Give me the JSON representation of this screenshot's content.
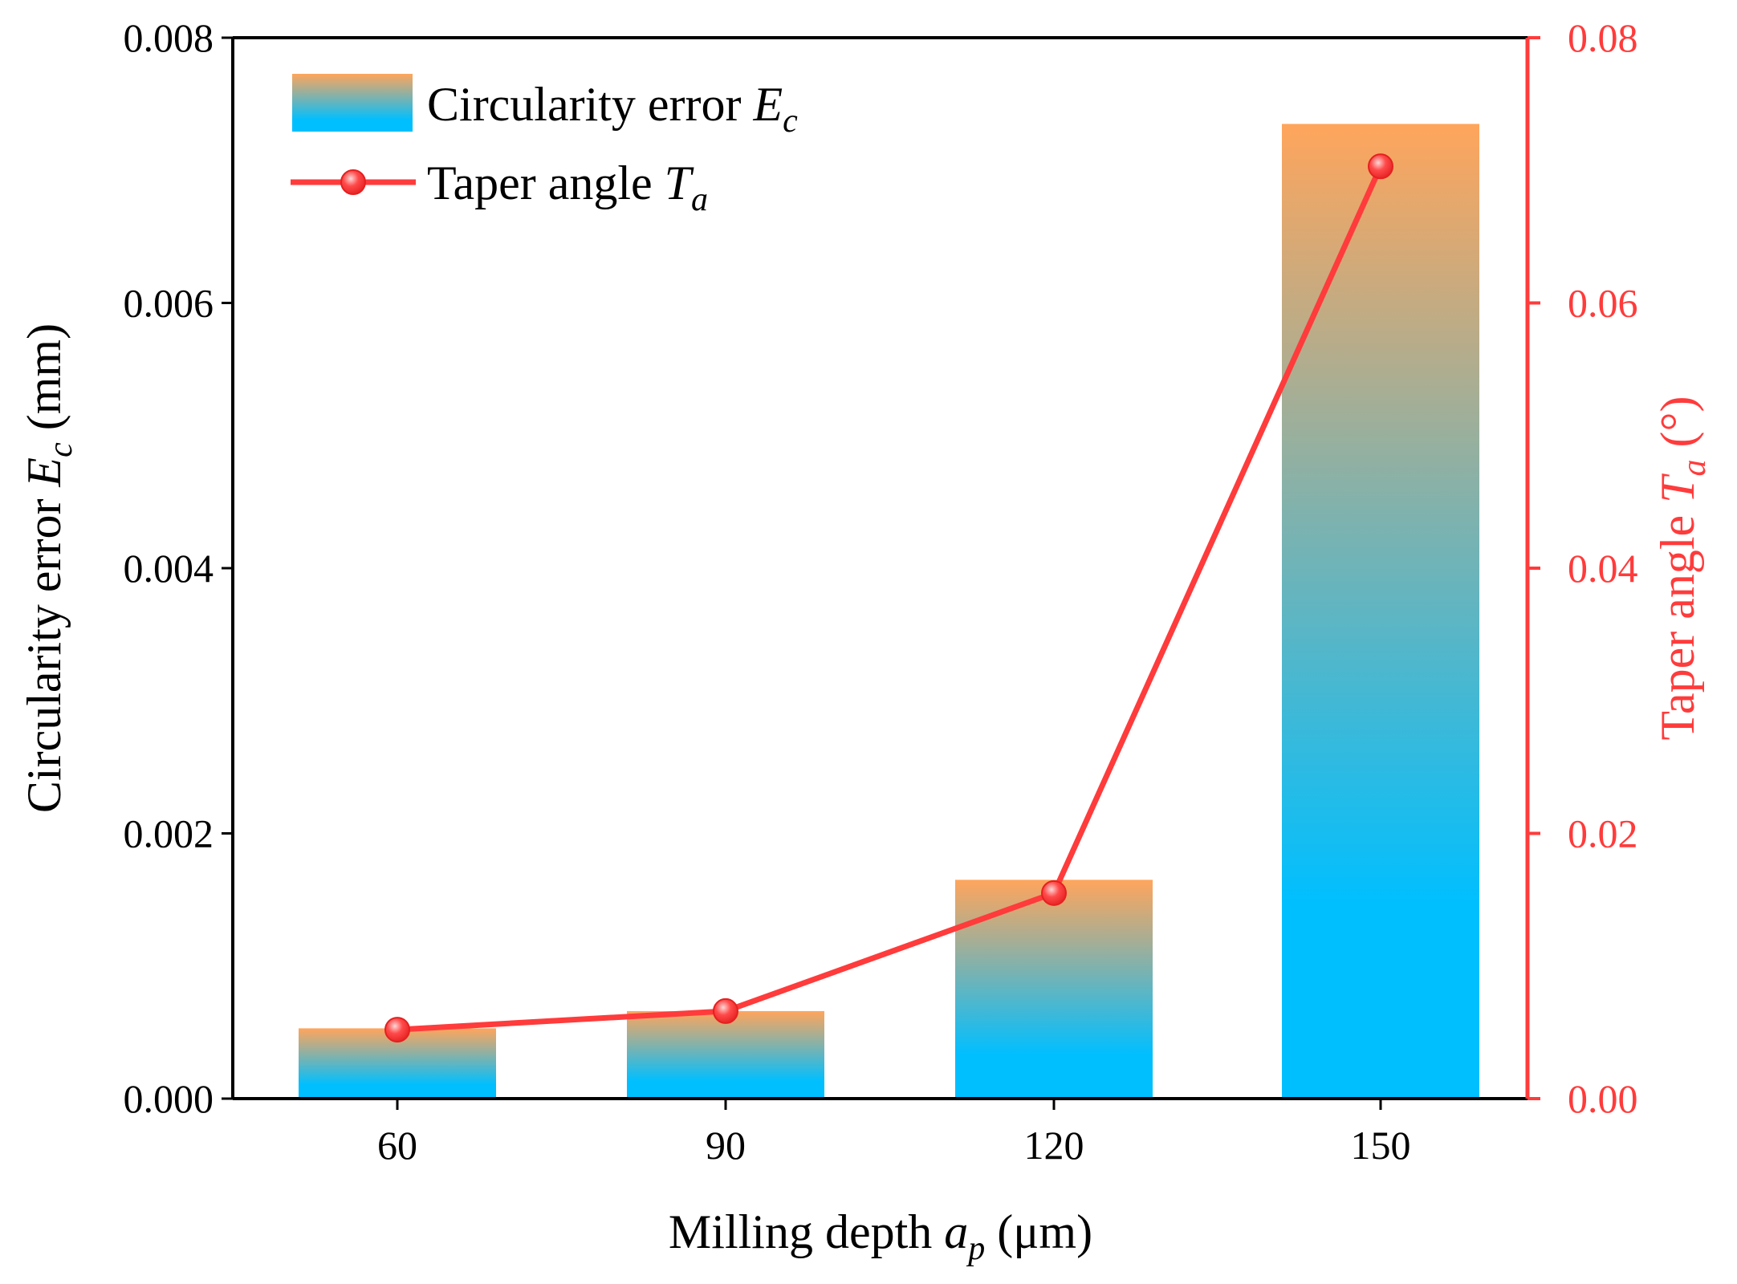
{
  "colors": {
    "bar_top": "#ffa55c",
    "bar_bottom": "#00bfff",
    "line": "#ff3b3b",
    "axis": "#000000",
    "right_axis": "#ff3b3b"
  },
  "chart_data": {
    "type": "bar",
    "categories": [
      "60",
      "90",
      "120",
      "150"
    ],
    "series": [
      {
        "name": "Circularity error",
        "name_symbol": "E",
        "name_sub": "c",
        "type": "bar",
        "axis": "left",
        "values": [
          0.00053,
          0.00066,
          0.00165,
          0.00735
        ]
      },
      {
        "name": "Taper angle",
        "name_symbol": "T",
        "name_sub": "a",
        "type": "line",
        "axis": "right",
        "values": [
          0.0052,
          0.0066,
          0.0155,
          0.0703
        ]
      }
    ],
    "xlabel": {
      "text": "Milling depth ",
      "symbol": "a",
      "sub": "p",
      "unit": " (μm)"
    },
    "ylabel_left": {
      "text": "Circularity error ",
      "symbol": "E",
      "sub": "c",
      "unit": " (mm)"
    },
    "ylabel_right": {
      "text": "Taper angle ",
      "symbol": "T",
      "sub": "a",
      "unit": " (°)"
    },
    "ylim_left": [
      0,
      0.008
    ],
    "ylim_right": [
      0,
      0.08
    ],
    "yticks_left": [
      "0.000",
      "0.002",
      "0.004",
      "0.006",
      "0.008"
    ],
    "yticks_right": [
      "0.00",
      "0.02",
      "0.04",
      "0.06",
      "0.08"
    ],
    "legend_position": "top-left",
    "grid": false
  }
}
